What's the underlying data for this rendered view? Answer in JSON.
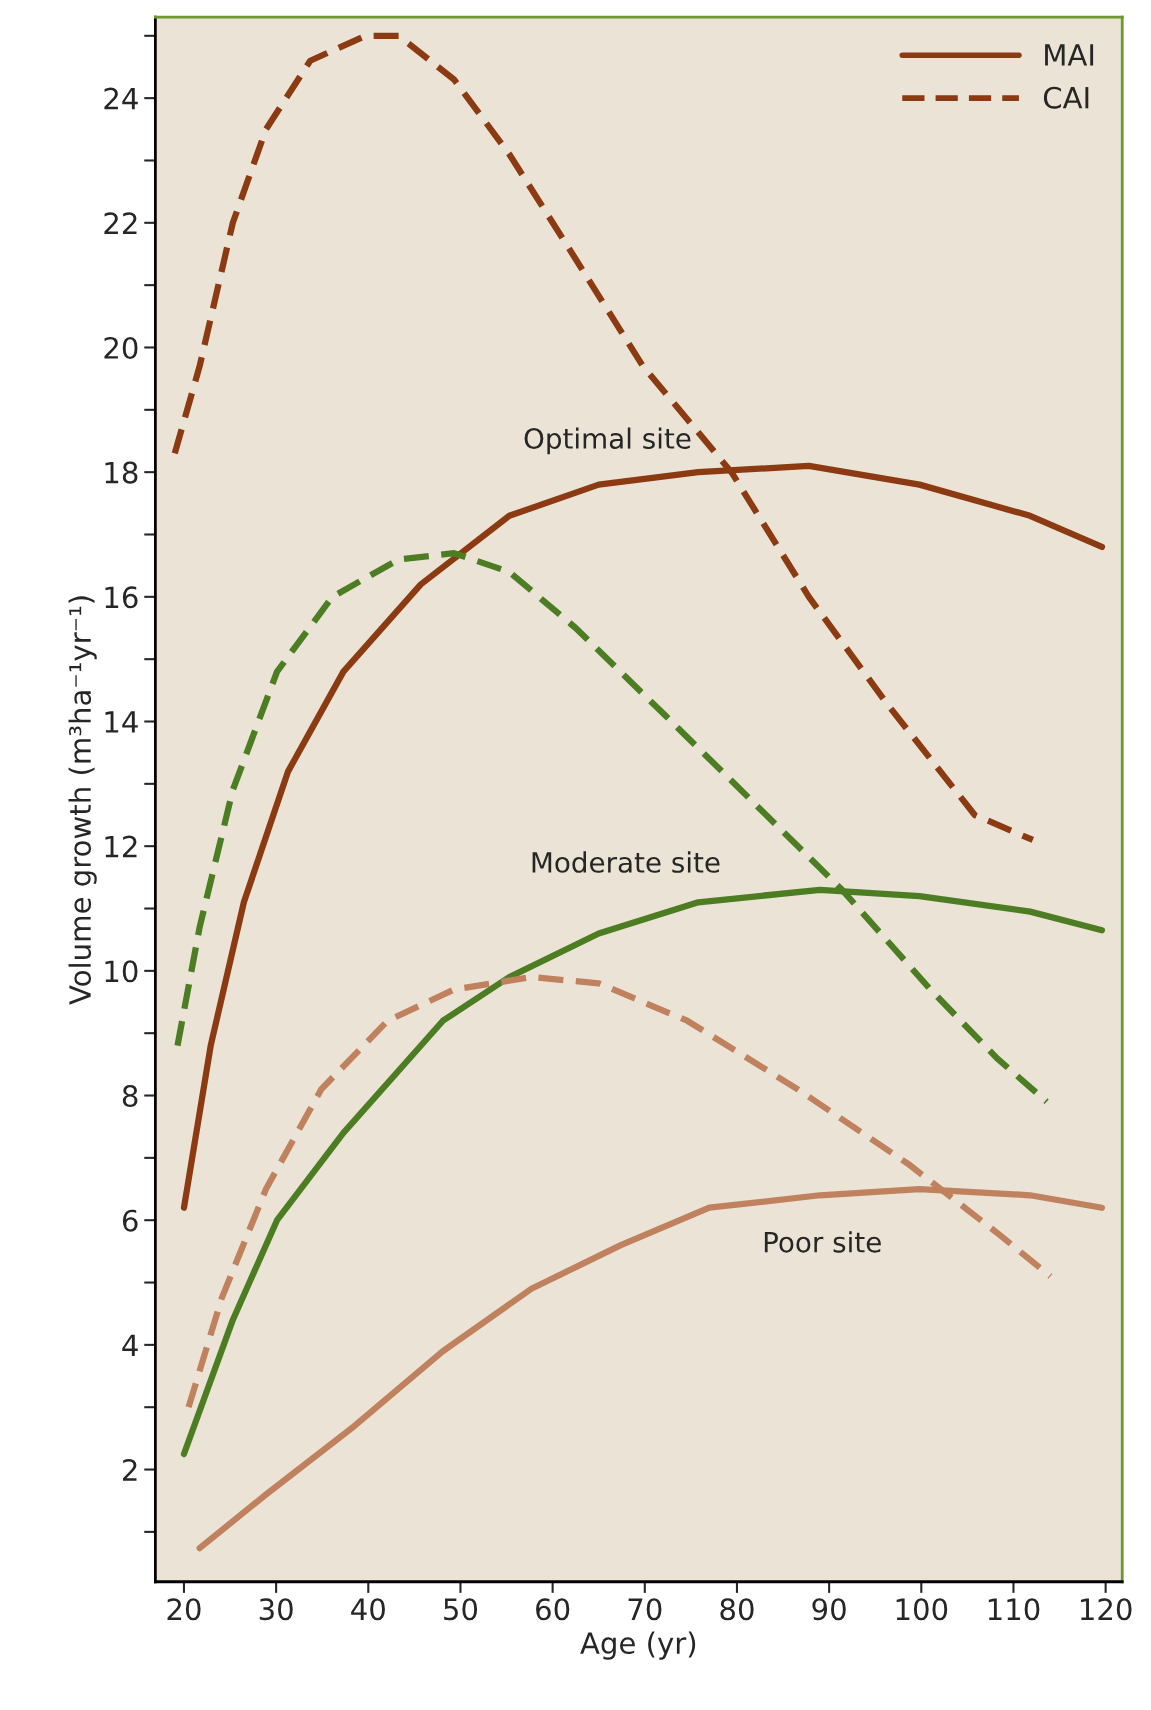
{
  "chart_data": {
    "type": "line",
    "xlabel": "Age (yr)",
    "ylabel": "Volume growth (m³ha⁻¹yr⁻¹)",
    "xlim": [
      16.9,
      121.8
    ],
    "ylim": [
      0.2,
      25.3
    ],
    "xticks": [
      20,
      30,
      40,
      50,
      60,
      70,
      80,
      90,
      100,
      110,
      120
    ],
    "yticks": [
      {
        "value": 1,
        "label": null
      },
      2,
      {
        "value": 3,
        "label": null
      },
      4,
      {
        "value": 5,
        "label": null
      },
      6,
      {
        "value": 7,
        "label": null
      },
      8,
      {
        "value": 9,
        "label": null
      },
      10,
      {
        "value": 11,
        "label": null
      },
      12,
      {
        "value": 13,
        "label": null
      },
      14,
      {
        "value": 15,
        "label": null
      },
      16,
      {
        "value": 17,
        "label": null
      },
      18,
      {
        "value": 19,
        "label": null
      },
      20,
      {
        "value": 21,
        "label": null
      },
      22,
      {
        "value": 23,
        "label": null
      },
      24,
      {
        "value": 25,
        "label": null
      }
    ],
    "grid": false,
    "legend": "top right",
    "marker": "none",
    "series": [
      {
        "name": "MAI",
        "color": "#8b3a12",
        "line_style": "solid",
        "x": [
          20,
          22.9,
          26.5,
          31.3,
          37.3,
          45.7,
          55.3,
          65,
          75.8,
          87.8,
          99.8,
          111.8,
          119.6
        ],
        "values": [
          6.2,
          8.8,
          11.1,
          13.2,
          14.8,
          16.2,
          17.3,
          17.8,
          18.0,
          18.1,
          17.8,
          17.3,
          16.8
        ]
      },
      {
        "name": "CAI",
        "color": "#8b3a12",
        "line_style": "dashed",
        "x": [
          19,
          21.7,
          25.3,
          28.9,
          33.7,
          39.7,
          43.3,
          49.3,
          55.3,
          61.3,
          69.8,
          79.4,
          87.8,
          96.2,
          105.8,
          112.1
        ],
        "values": [
          18.3,
          19.7,
          22.0,
          23.5,
          24.6,
          25.0,
          25.0,
          24.3,
          23.1,
          21.7,
          19.7,
          18.0,
          16.0,
          14.3,
          12.5,
          12.1
        ]
      },
      {
        "color": "#4d7d22",
        "line_style": "solid",
        "x": [
          20,
          25.3,
          30.1,
          37.3,
          48.1,
          55.3,
          65,
          75.8,
          89,
          99.8,
          111.8,
          119.6
        ],
        "values": [
          2.25,
          4.4,
          6.0,
          7.4,
          9.2,
          9.9,
          10.6,
          11.1,
          11.3,
          11.2,
          10.95,
          10.65
        ]
      },
      {
        "color": "#4d7d22",
        "line_style": "dashed",
        "x": [
          19.3,
          21.7,
          25.3,
          30.1,
          36.1,
          43.3,
          49.3,
          55.3,
          62.5,
          72.2,
          81.8,
          91.4,
          101,
          108.2,
          113.6
        ],
        "values": [
          8.8,
          10.7,
          12.9,
          14.8,
          16.0,
          16.6,
          16.7,
          16.4,
          15.5,
          14.1,
          12.7,
          11.3,
          9.7,
          8.6,
          7.9
        ]
      },
      {
        "color": "#c0815e",
        "line_style": "solid",
        "x": [
          21.7,
          28.9,
          38.5,
          48.1,
          57.7,
          67.4,
          77,
          89,
          99.8,
          111.8,
          119.6
        ],
        "values": [
          0.74,
          1.6,
          2.7,
          3.9,
          4.9,
          5.6,
          6.2,
          6.4,
          6.5,
          6.4,
          6.2
        ]
      },
      {
        "color": "#c0815e",
        "line_style": "dashed",
        "x": [
          20.5,
          24.1,
          28.9,
          34.9,
          42.1,
          49.3,
          57.7,
          65,
          74.6,
          86.6,
          98.6,
          108.2,
          114
        ],
        "values": [
          3.0,
          4.75,
          6.5,
          8.1,
          9.2,
          9.7,
          9.9,
          9.8,
          9.2,
          8.1,
          6.9,
          5.8,
          5.1
        ]
      }
    ],
    "annotations": [
      "Optimal site",
      "Moderate site",
      "Poor site"
    ]
  }
}
